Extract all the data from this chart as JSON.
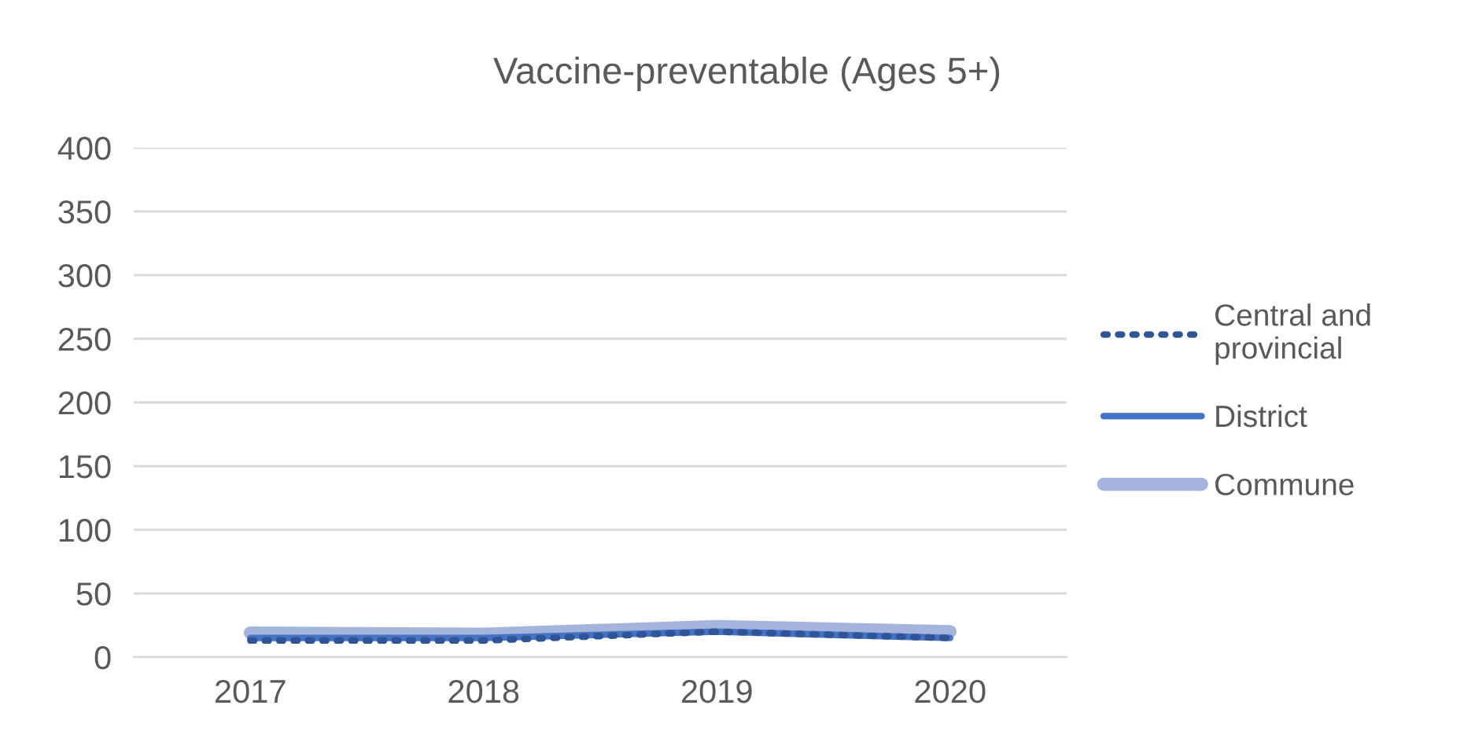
{
  "chart_data": {
    "type": "line",
    "title": "Vaccine-preventable (Ages 5+)",
    "categories": [
      "2017",
      "2018",
      "2019",
      "2020"
    ],
    "series": [
      {
        "name": "Central and provincial",
        "color": "#2f5597",
        "values": [
          13,
          13,
          20,
          15
        ],
        "line_style": "dotted"
      },
      {
        "name": "District",
        "color": "#4472c4",
        "values": [
          15,
          15,
          20,
          15
        ],
        "line_style": "solid"
      },
      {
        "name": "Commune",
        "color": "#a5b4dc",
        "values": [
          19,
          18,
          24,
          20
        ],
        "line_style": "solid"
      }
    ],
    "ylim": [
      0,
      400
    ],
    "yticks": [
      0,
      50,
      100,
      150,
      200,
      250,
      300,
      350,
      400
    ],
    "grid": "y",
    "legend": "right",
    "marker": "none"
  }
}
